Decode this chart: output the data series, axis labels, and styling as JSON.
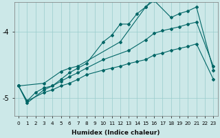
{
  "background_color": "#cce8e8",
  "grid_color": "#99cccc",
  "line_color": "#006666",
  "xlabel": "Humidex (Indice chaleur)",
  "xlim": [
    -0.5,
    23.5
  ],
  "ylim": [
    -5.28,
    -3.55
  ],
  "yticks": [
    -5,
    -4
  ],
  "series": [
    [
      [
        0,
        -4.82
      ],
      [
        1,
        -5.05
      ],
      [
        2,
        -4.92
      ],
      [
        3,
        -4.85
      ],
      [
        4,
        -4.82
      ],
      [
        5,
        -4.72
      ],
      [
        6,
        -4.62
      ],
      [
        7,
        -4.55
      ],
      [
        8,
        -4.48
      ],
      [
        10,
        -4.15
      ],
      [
        11,
        -4.05
      ],
      [
        12,
        -3.88
      ],
      [
        13,
        -3.88
      ],
      [
        14,
        -3.72
      ],
      [
        15,
        -3.62
      ],
      [
        16,
        -3.48
      ],
      [
        17,
        -3.42
      ]
    ],
    [
      [
        0,
        -4.82
      ],
      [
        3,
        -4.78
      ],
      [
        5,
        -4.6
      ],
      [
        6,
        -4.55
      ],
      [
        7,
        -4.52
      ],
      [
        12,
        -4.15
      ],
      [
        15,
        -3.62
      ],
      [
        16,
        -3.52
      ],
      [
        18,
        -3.78
      ],
      [
        19,
        -3.72
      ],
      [
        20,
        -3.68
      ],
      [
        21,
        -3.62
      ],
      [
        23,
        -4.58
      ]
    ],
    [
      [
        0,
        -4.82
      ],
      [
        1,
        -5.08
      ],
      [
        3,
        -4.88
      ],
      [
        4,
        -4.82
      ],
      [
        5,
        -4.75
      ],
      [
        6,
        -4.68
      ],
      [
        7,
        -4.62
      ],
      [
        8,
        -4.55
      ],
      [
        10,
        -4.42
      ],
      [
        13,
        -4.28
      ],
      [
        15,
        -4.12
      ],
      [
        16,
        -4.02
      ],
      [
        17,
        -3.98
      ],
      [
        18,
        -3.95
      ],
      [
        19,
        -3.92
      ],
      [
        20,
        -3.88
      ],
      [
        21,
        -3.85
      ],
      [
        23,
        -4.52
      ]
    ],
    [
      [
        0,
        -4.82
      ],
      [
        1,
        -5.05
      ],
      [
        3,
        -4.92
      ],
      [
        4,
        -4.88
      ],
      [
        5,
        -4.82
      ],
      [
        6,
        -4.78
      ],
      [
        7,
        -4.72
      ],
      [
        8,
        -4.65
      ],
      [
        10,
        -4.58
      ],
      [
        11,
        -4.55
      ],
      [
        12,
        -4.52
      ],
      [
        13,
        -4.48
      ],
      [
        14,
        -4.45
      ],
      [
        15,
        -4.42
      ],
      [
        16,
        -4.35
      ],
      [
        17,
        -4.32
      ],
      [
        18,
        -4.28
      ],
      [
        19,
        -4.25
      ],
      [
        20,
        -4.22
      ],
      [
        21,
        -4.18
      ],
      [
        23,
        -4.72
      ]
    ]
  ]
}
